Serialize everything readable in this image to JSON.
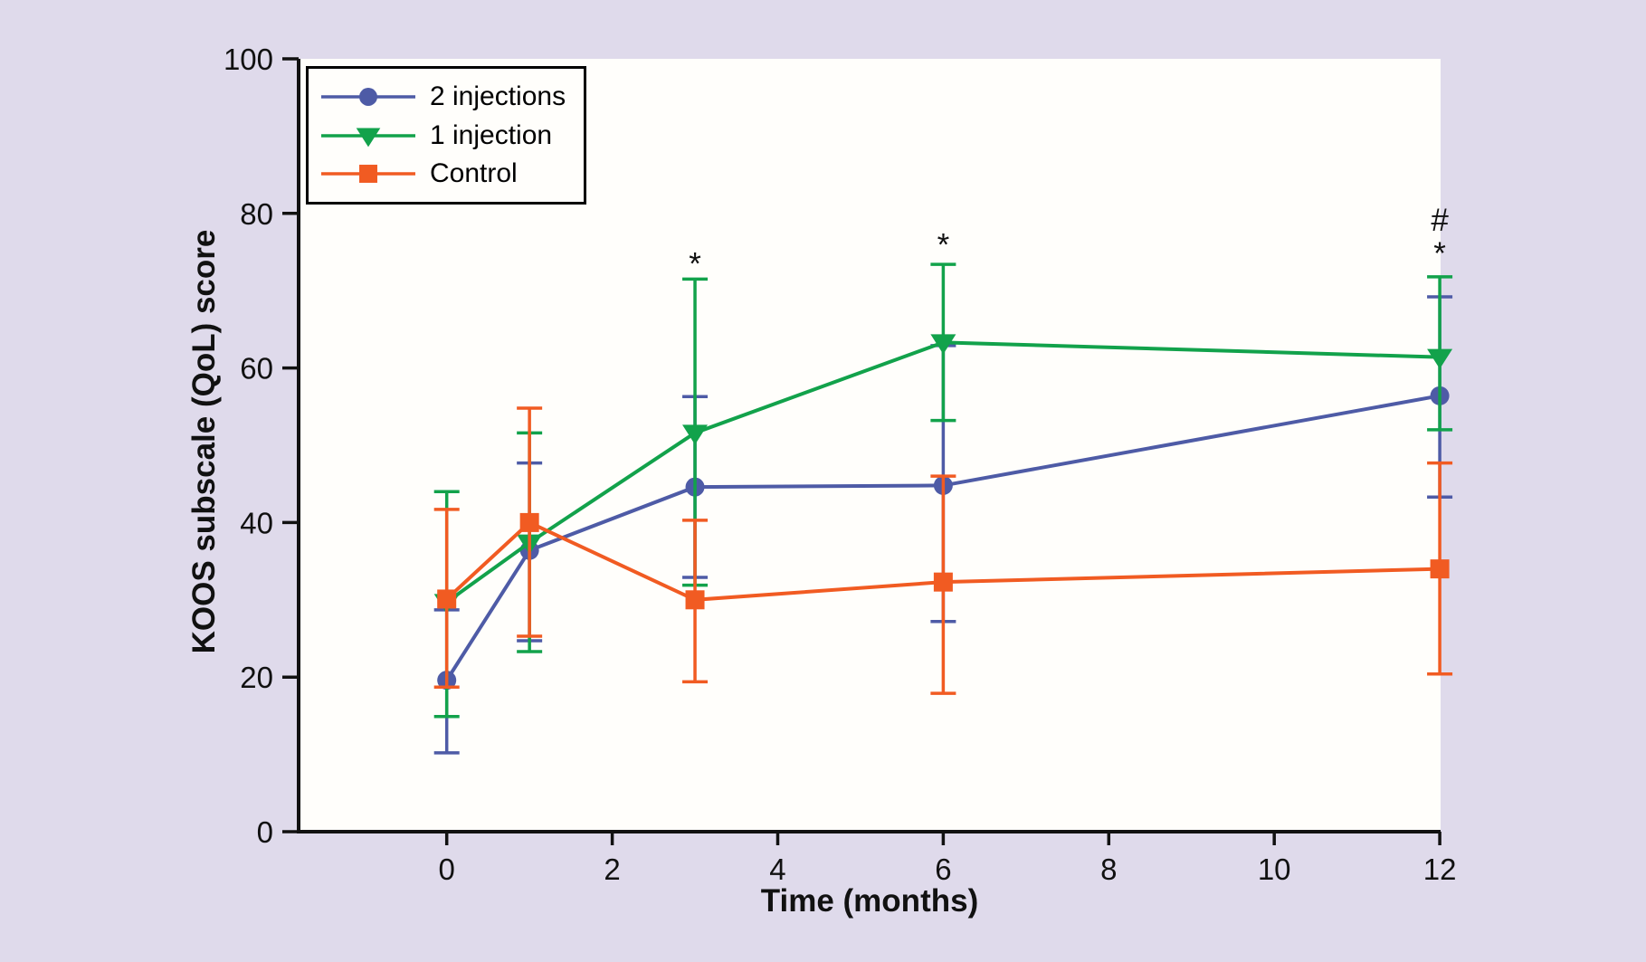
{
  "figure": {
    "background_color": "#dfdaeb",
    "plot_background_color": "#fffefb",
    "axis_color": "#111111"
  },
  "chart_data": {
    "type": "line",
    "title": "",
    "xlabel": "Time (months)",
    "ylabel": "KOOS subscale (QoL) score",
    "x": [
      0,
      1,
      3,
      6,
      12
    ],
    "xticks": [
      0,
      2,
      4,
      6,
      8,
      10,
      12
    ],
    "yticks": [
      0,
      20,
      40,
      60,
      80,
      100
    ],
    "xlim": [
      -1.79,
      12.01
    ],
    "ylim": [
      0,
      100
    ],
    "grid": false,
    "legend_position": "top-left-inside",
    "series": [
      {
        "name": "2 injections",
        "color": "#4e5ba6",
        "marker": "circle",
        "values": [
          19.6,
          36.4,
          44.6,
          44.8,
          56.4
        ],
        "err_low": [
          10.2,
          24.7,
          32.9,
          27.2,
          43.3
        ],
        "err_high": [
          28.7,
          47.7,
          56.3,
          62.9,
          69.2
        ]
      },
      {
        "name": "1 injection",
        "color": "#12a24b",
        "marker": "triangle-down",
        "values": [
          29.7,
          37.4,
          51.6,
          63.3,
          61.4
        ],
        "err_low": [
          14.9,
          23.3,
          31.9,
          53.2,
          52.0
        ],
        "err_high": [
          44.0,
          51.6,
          71.5,
          73.4,
          71.8
        ]
      },
      {
        "name": "Control",
        "color": "#f15b22",
        "marker": "square",
        "values": [
          30.1,
          40.0,
          30.0,
          32.3,
          34.0
        ],
        "err_low": [
          18.7,
          25.3,
          19.4,
          17.9,
          20.4
        ],
        "err_high": [
          41.7,
          54.8,
          40.3,
          46.0,
          47.7
        ]
      }
    ],
    "annotations": [
      {
        "x": 3,
        "y": 73.8,
        "text": "*"
      },
      {
        "x": 6,
        "y": 76.3,
        "text": "*"
      },
      {
        "x": 12,
        "y": 79.5,
        "text": "#"
      },
      {
        "x": 12,
        "y": 75.2,
        "text": "*"
      }
    ]
  }
}
